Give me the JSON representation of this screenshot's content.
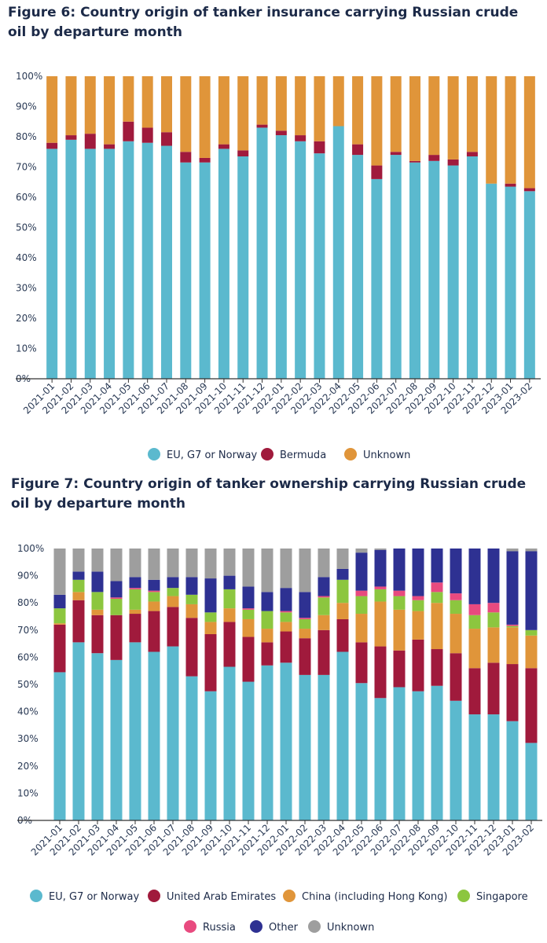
{
  "figure6": {
    "title": "Figure 6: Country origin of tanker insurance carrying Russian crude oil by departure month"
  },
  "figure7": {
    "title": "Figure 7: Country origin of tanker ownership carrying Russian crude oil by departure month"
  },
  "chart_data": [
    {
      "type": "bar",
      "stacked": true,
      "title": "Figure 6: Country origin of tanker insurance carrying Russian crude oil by departure month",
      "xlabel": "",
      "ylabel": "",
      "ylim": [
        0,
        100
      ],
      "yticks": [
        "0%",
        "10%",
        "20%",
        "30%",
        "40%",
        "50%",
        "60%",
        "70%",
        "80%",
        "90%",
        "100%"
      ],
      "legend_position": "bottom",
      "categories": [
        "2021-01",
        "2021-02",
        "2021-03",
        "2021-04",
        "2021-05",
        "2021-06",
        "2021-07",
        "2021-08",
        "2021-09",
        "2021-10",
        "2021-11",
        "2021-12",
        "2022-01",
        "2022-02",
        "2022-03",
        "2022-04",
        "2022-05",
        "2022-06",
        "2022-07",
        "2022-08",
        "2022-09",
        "2022-10",
        "2022-11",
        "2022-12",
        "2023-01",
        "2023-02"
      ],
      "series": [
        {
          "name": "EU, G7 or Norway",
          "color": "#5bb9ce",
          "values": [
            76,
            79,
            76,
            76,
            78.5,
            78,
            77,
            71.5,
            71.5,
            76,
            73.5,
            83,
            80.5,
            78.5,
            74.5,
            83.5,
            74,
            66,
            74,
            71.5,
            72,
            70.5,
            73.5,
            64.5,
            63.5,
            62
          ]
        },
        {
          "name": "Bermuda",
          "color": "#a01a3c",
          "values": [
            2,
            1.5,
            5,
            1.5,
            6.5,
            5,
            4.5,
            3.5,
            1.5,
            1.5,
            2,
            1,
            1.5,
            2,
            4,
            0,
            3.5,
            4.5,
            1,
            0.5,
            2,
            2,
            1.5,
            0,
            1,
            1
          ]
        },
        {
          "name": "Unknown",
          "color": "#e0953a",
          "values": [
            22,
            19.5,
            19,
            22.5,
            15,
            17,
            18.5,
            25,
            27,
            22.5,
            24.5,
            16,
            18,
            19.5,
            21.5,
            16.5,
            22.5,
            29.5,
            25,
            28,
            26,
            27.5,
            25,
            35.5,
            35.5,
            37
          ]
        }
      ]
    },
    {
      "type": "bar",
      "stacked": true,
      "title": "Figure 7: Country origin of tanker ownership carrying Russian crude oil by departure month",
      "xlabel": "",
      "ylabel": "",
      "ylim": [
        0,
        100
      ],
      "yticks": [
        "0%",
        "10%",
        "20%",
        "30%",
        "40%",
        "50%",
        "60%",
        "70%",
        "80%",
        "90%",
        "100%"
      ],
      "legend_position": "bottom",
      "categories": [
        "2021-01",
        "2021-02",
        "2021-03",
        "2021-04",
        "2021-05",
        "2021-06",
        "2021-07",
        "2021-08",
        "2021-09",
        "2021-10",
        "2021-11",
        "2021-12",
        "2022-01",
        "2022-02",
        "2022-03",
        "2022-04",
        "2022-05",
        "2022-06",
        "2022-07",
        "2022-08",
        "2022-09",
        "2022-10",
        "2022-11",
        "2022-12",
        "2023-01",
        "2023-02"
      ],
      "series": [
        {
          "name": "EU, G7 or Norway",
          "color": "#5bb9ce",
          "values": [
            54.5,
            65.5,
            61.5,
            59,
            65.5,
            62,
            64,
            53,
            47.5,
            56.5,
            51,
            57,
            58,
            53.5,
            53.5,
            62,
            50.5,
            45,
            49,
            47.5,
            49.5,
            44,
            39,
            39,
            36.5,
            28.5
          ]
        },
        {
          "name": "United Arab Emirates",
          "color": "#a01a3c",
          "values": [
            17.5,
            15.5,
            14,
            16.5,
            10.5,
            15,
            14.5,
            21.5,
            21,
            16.5,
            16.5,
            8.5,
            11.5,
            13.5,
            16.5,
            12,
            15,
            19,
            13.5,
            19,
            13.5,
            17.5,
            17,
            19,
            21,
            27.5
          ]
        },
        {
          "name": "China (including Hong Kong)",
          "color": "#e0953a",
          "values": [
            0.5,
            3,
            2,
            0,
            1.5,
            3.5,
            4,
            5,
            4.5,
            5,
            6.5,
            5,
            3.5,
            3.5,
            5.5,
            6,
            10.5,
            16.5,
            15,
            10.5,
            17,
            14.5,
            14.5,
            13,
            13.5,
            12
          ]
        },
        {
          "name": "Singapore",
          "color": "#8cc63f",
          "values": [
            5.5,
            4.5,
            6.5,
            6,
            7.5,
            3.5,
            3,
            3.5,
            3.5,
            7,
            3.5,
            6.5,
            3.5,
            3.5,
            6.5,
            8.5,
            6.5,
            4.5,
            5,
            4,
            4,
            5,
            5,
            5.5,
            0.5,
            2
          ]
        },
        {
          "name": "Russia",
          "color": "#e84a7f",
          "values": [
            0,
            0,
            0,
            0.5,
            0.5,
            0.5,
            0,
            0,
            0,
            0,
            0.5,
            0,
            0.5,
            0.5,
            0.5,
            0,
            2,
            1,
            2,
            1.5,
            3.5,
            2.5,
            4,
            3.5,
            0.5,
            0
          ]
        },
        {
          "name": "Other",
          "color": "#2e3192",
          "values": [
            5,
            3,
            7.5,
            6,
            4,
            4,
            4,
            6.5,
            12.5,
            5,
            8,
            7,
            8.5,
            9.5,
            7,
            4,
            14,
            13.5,
            15.5,
            17.5,
            12.5,
            16.5,
            20.5,
            20,
            27,
            29
          ]
        },
        {
          "name": "Unknown",
          "color": "#9e9e9e",
          "values": [
            17,
            8.5,
            8.5,
            12,
            10.5,
            11.5,
            10.5,
            10.5,
            11,
            10,
            14,
            16,
            14.5,
            16,
            10.5,
            7.5,
            1.5,
            0.5,
            0,
            0,
            0,
            0,
            0,
            0,
            1,
            1
          ]
        }
      ]
    }
  ]
}
